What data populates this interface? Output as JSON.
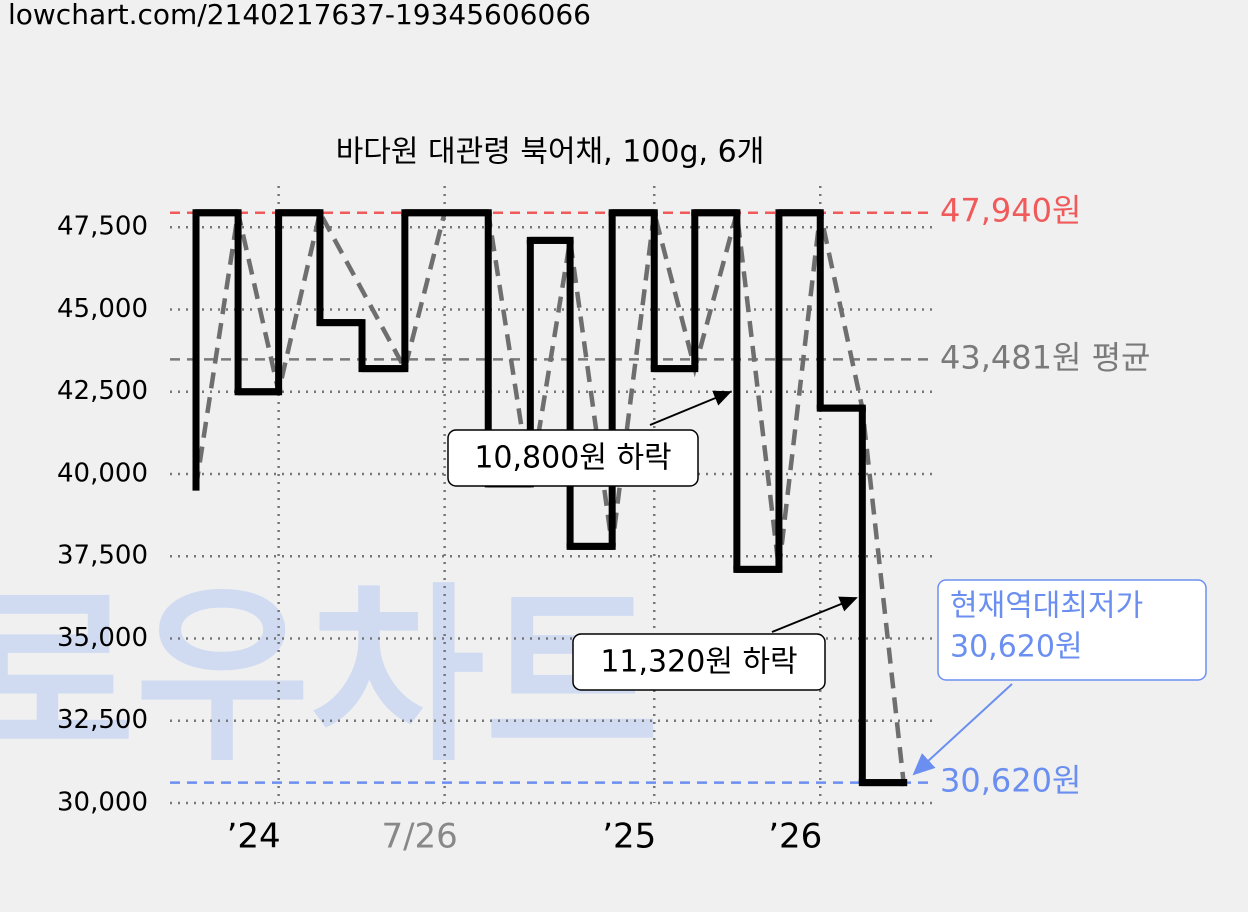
{
  "header": "lowchart.com/2140217637-19345606066",
  "watermark": "로우차트",
  "chart_data": {
    "type": "step-line",
    "title": "바다원 대관령 북어채, 100g, 6개",
    "xlim": [
      0,
      100
    ],
    "xticks": [
      {
        "value": 14.2,
        "label": "’24"
      },
      {
        "value": 35.9,
        "label": "7/26"
      },
      {
        "value": 63.3,
        "label": "’25"
      },
      {
        "value": 85,
        "label": "’26"
      }
    ],
    "ylim": [
      30000,
      48600
    ],
    "yticks": [
      {
        "value": 30000,
        "label": "30,000"
      },
      {
        "value": 32500,
        "label": "32,500"
      },
      {
        "value": 35000,
        "label": "35,000"
      },
      {
        "value": 37500,
        "label": "37,500"
      },
      {
        "value": 40000,
        "label": "40,000"
      },
      {
        "value": 42500,
        "label": "42,500"
      },
      {
        "value": 45000,
        "label": "45,000"
      },
      {
        "value": 47500,
        "label": "47,500"
      }
    ],
    "grid": true,
    "series": [
      {
        "style": "step",
        "color": "#000000",
        "x": [
          3.4,
          3.4,
          8.9,
          14.2,
          19.6,
          25.1,
          30.7,
          41.6,
          47.1,
          52.3,
          57.8,
          63.3,
          68.6,
          74.1,
          79.6,
          85,
          90.5,
          95.9
        ],
        "values": [
          39600,
          47940,
          42500,
          47940,
          44600,
          43200,
          47940,
          39700,
          47100,
          37800,
          47940,
          43200,
          47940,
          37100,
          47940,
          42000,
          30620,
          30620
        ]
      },
      {
        "style": "dashed",
        "color": "#6e6e6e",
        "x": [
          3.4,
          8.9,
          14.2,
          19.6,
          30.7,
          35.9,
          41.6,
          47.1,
          52.3,
          57.8,
          63.3,
          68.6,
          74.1,
          79.6,
          85,
          90.5,
          95.9
        ],
        "values": [
          39600,
          47940,
          42500,
          47940,
          43200,
          47940,
          47940,
          39700,
          47100,
          37800,
          47940,
          43200,
          47940,
          37100,
          47940,
          42000,
          30620
        ]
      }
    ],
    "ref_lines": [
      {
        "value": 47940,
        "label": "47,940원",
        "color": "#f05a5a"
      },
      {
        "value": 43481,
        "label": "43,481원 평균",
        "color": "#7a7a7a"
      },
      {
        "value": 30620,
        "label": "30,620원",
        "color": "#6b8ff0"
      }
    ],
    "annotations": [
      "10,800원 하락",
      "11,320원 하락"
    ],
    "min_note": [
      "현재역대최저가",
      "30,620원"
    ]
  }
}
